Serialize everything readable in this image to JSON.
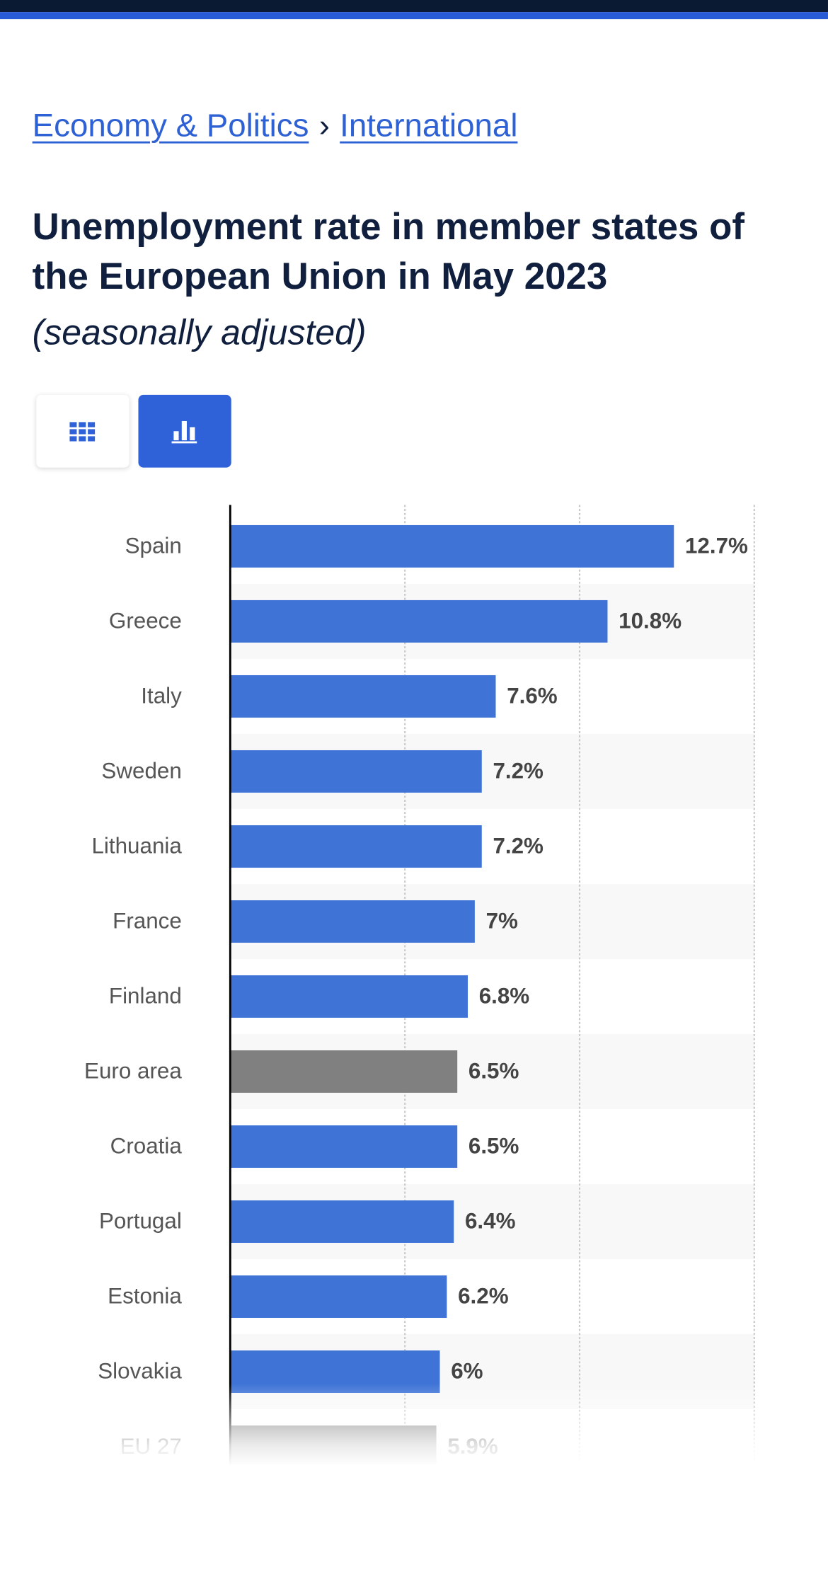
{
  "header": {
    "breadcrumbs": [
      "Economy & Politics",
      "›",
      "International"
    ]
  },
  "chart_data": {
    "type": "bar",
    "orientation": "horizontal",
    "title": "Unemployment rate in member states of the European Union in May 2023",
    "subtitle": "(seasonally adjusted)",
    "categories": [
      "Spain",
      "Greece",
      "Italy",
      "Sweden",
      "Lithuania",
      "France",
      "Finland",
      "Euro area",
      "Croatia",
      "Portugal",
      "Estonia",
      "Slovakia",
      "EU 27"
    ],
    "values": [
      12.7,
      10.8,
      7.6,
      7.2,
      7.2,
      7,
      6.8,
      6.5,
      6.5,
      6.4,
      6.2,
      6,
      5.9
    ],
    "value_labels": [
      "12.7%",
      "10.8%",
      "7.6%",
      "7.2%",
      "7.2%",
      "7%",
      "6.8%",
      "6.5%",
      "6.5%",
      "6.4%",
      "6.2%",
      "6%",
      "5.9%"
    ],
    "colors": [
      "#3f74d6",
      "#3f74d6",
      "#3f74d6",
      "#3f74d6",
      "#3f74d6",
      "#3f74d6",
      "#3f74d6",
      "#808080",
      "#3f74d6",
      "#3f74d6",
      "#3f74d6",
      "#3f74d6",
      "#808080"
    ],
    "xlim": [
      0,
      15
    ],
    "xticks": [
      0,
      5,
      10,
      15
    ],
    "grid": true
  }
}
